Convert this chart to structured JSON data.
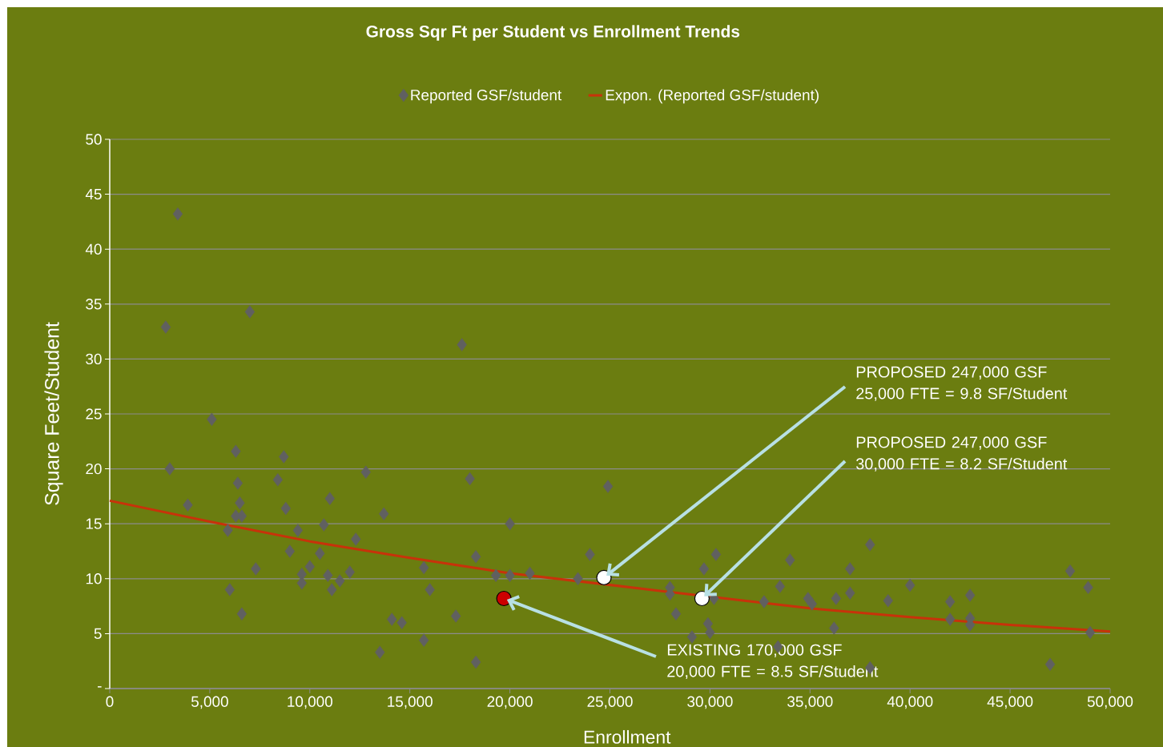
{
  "chart_data": {
    "type": "scatter",
    "title": "Gross Sqr Ft per Student vs Enrollment Trends",
    "xlabel": "Enrollment",
    "ylabel": "Square Feet/Student",
    "xlim": [
      0,
      50000
    ],
    "ylim": [
      0,
      50
    ],
    "xticks": [
      0,
      {
        "value": 5000,
        "label": "5,000"
      },
      {
        "value": 10000,
        "label": "10,000"
      },
      {
        "value": 15000,
        "label": "15,000"
      },
      {
        "value": 20000,
        "label": "20,000"
      },
      {
        "value": 25000,
        "label": "25,000"
      },
      {
        "value": 30000,
        "label": "30,000"
      },
      {
        "value": 35000,
        "label": "35,000"
      },
      {
        "value": 40000,
        "label": "40,000"
      },
      {
        "value": 45000,
        "label": "45,000"
      },
      {
        "value": 50000,
        "label": "50,000"
      }
    ],
    "yticks": [
      {
        "value": 0,
        "label": "-"
      },
      5,
      10,
      15,
      20,
      25,
      30,
      35,
      40,
      45,
      50
    ],
    "grid": "y",
    "legend": "top",
    "series": [
      {
        "name": "Reported GSF/student",
        "type": "scatter",
        "marker": "diamond",
        "color": "#606060",
        "x": [
          2800,
          3400,
          3000,
          3900,
          5100,
          5900,
          6000,
          6300,
          6400,
          6300,
          6500,
          6600,
          6600,
          7000,
          7300,
          8400,
          8700,
          8800,
          9000,
          9400,
          9600,
          9600,
          10000,
          10500,
          10700,
          10900,
          11000,
          11100,
          11500,
          12000,
          12300,
          12800,
          13500,
          13700,
          14100,
          14600,
          15700,
          15700,
          16000,
          17300,
          17600,
          18000,
          18300,
          18300,
          19300,
          20000,
          20000,
          21000,
          23400,
          24000,
          24900,
          28000,
          28000,
          28300,
          29100,
          29700,
          30300,
          29900,
          30000,
          30200,
          32700,
          33500,
          33400,
          34000,
          34900,
          35100,
          36300,
          36200,
          37000,
          37000,
          38000,
          38000,
          38900,
          40000,
          42000,
          42000,
          43000,
          43000,
          43000,
          47000,
          48000,
          48900,
          49000
        ],
        "values": [
          32.9,
          43.2,
          20.0,
          16.7,
          24.5,
          14.4,
          9.0,
          21.6,
          18.7,
          15.7,
          16.9,
          15.7,
          6.8,
          34.3,
          10.9,
          19.0,
          21.1,
          16.4,
          12.5,
          14.4,
          10.4,
          9.6,
          11.1,
          12.3,
          14.9,
          10.3,
          17.3,
          9.0,
          9.8,
          10.6,
          13.6,
          19.7,
          3.3,
          15.9,
          6.3,
          6.0,
          11.0,
          4.4,
          9.0,
          6.6,
          31.3,
          19.1,
          12.0,
          2.4,
          10.3,
          10.3,
          15.0,
          10.5,
          10.0,
          12.2,
          18.4,
          9.2,
          8.6,
          6.8,
          4.7,
          10.9,
          12.2,
          5.9,
          5.1,
          8.2,
          7.9,
          9.3,
          3.8,
          11.7,
          8.2,
          7.7,
          8.2,
          5.5,
          10.9,
          8.7,
          13.1,
          1.9,
          8.0,
          9.4,
          7.9,
          6.3,
          8.5,
          6.4,
          5.8,
          2.2,
          10.7,
          9.2,
          5.1
        ]
      },
      {
        "name": "Expon. (Reported GSF/student)",
        "type": "line",
        "marker": "none",
        "color": "#c8320a",
        "x": [
          0,
          5000,
          10000,
          15000,
          20000,
          27500,
          35000,
          40000,
          45000,
          50000
        ],
        "values": [
          17.1,
          15.2,
          13.4,
          11.9,
          10.5,
          8.9,
          7.3,
          6.5,
          5.8,
          5.2
        ]
      },
      {
        "type": "scatter",
        "marker": "circle",
        "color": "#cc0000",
        "x": [
          19700
        ],
        "values": [
          8.2
        ]
      },
      {
        "type": "scatter",
        "marker": "circle",
        "color": "#ffffff",
        "x": [
          24700,
          29600
        ],
        "values": [
          10.1,
          8.2
        ]
      }
    ],
    "annotations": [
      {
        "text": "EXISTING 170,000 GSF\n20,000 FTE = 8.5 SF/Student",
        "x": 19700,
        "y": 8.2
      },
      {
        "text": "PROPOSED 247,000 GSF\n25,000 FTE = 9.8 SF/Student",
        "x": 24700,
        "y": 10.1
      },
      {
        "text": "PROPOSED 247,000 GSF\n30,000 FTE = 8.2 SF/Student",
        "x": 29600,
        "y": 8.2
      }
    ]
  }
}
